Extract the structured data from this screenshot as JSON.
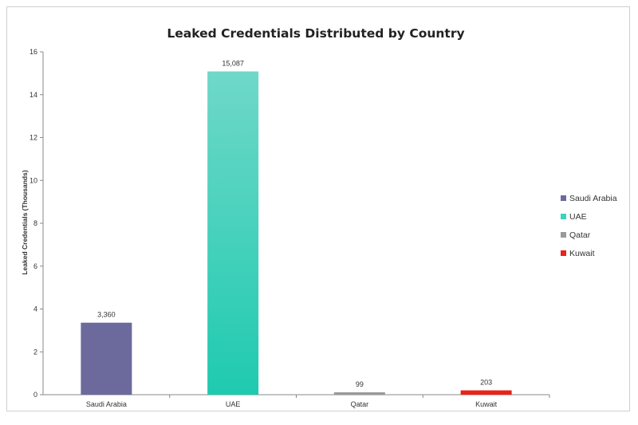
{
  "chart_data": {
    "type": "bar",
    "title": "Leaked Credentials Distributed by Country",
    "xlabel": "",
    "ylabel": "Leaked Credentials (Thousands)",
    "ylim": [
      0,
      16
    ],
    "yticks": [
      0,
      2,
      4,
      6,
      8,
      10,
      12,
      14,
      16
    ],
    "categories": [
      "Saudi Arabia",
      "UAE",
      "Qatar",
      "Kuwait"
    ],
    "values": [
      3.36,
      15.087,
      0.099,
      0.203
    ],
    "data_labels": [
      "3,360",
      "15,087",
      "99",
      "203"
    ],
    "colors": [
      "#6c6a9c",
      "#3ad3bd",
      "#9a9a9a",
      "#e8241a"
    ],
    "legend": {
      "position": "right",
      "entries": [
        "Saudi Arabia",
        "UAE",
        "Qatar",
        "Kuwait"
      ]
    },
    "grid": false
  }
}
